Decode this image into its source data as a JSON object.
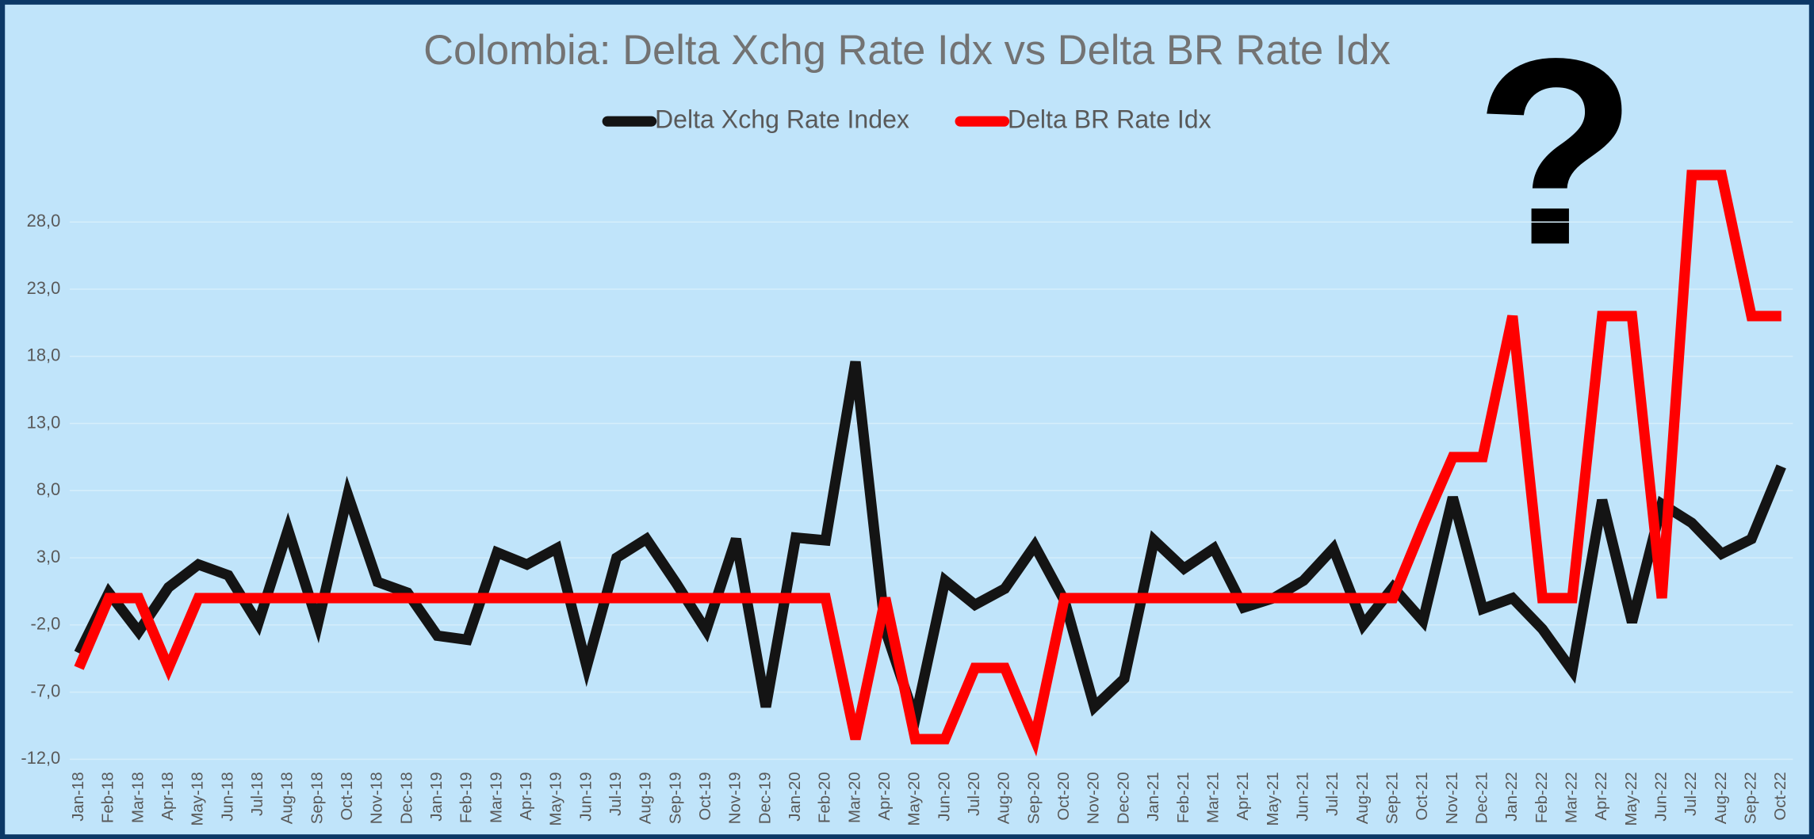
{
  "chart_data": {
    "type": "line",
    "title": "Colombia: Delta Xchg Rate Idx vs Delta BR Rate Idx",
    "annotation": "?",
    "categories": [
      "Jan-18",
      "Feb-18",
      "Mar-18",
      "Apr-18",
      "May-18",
      "Jun-18",
      "Jul-18",
      "Aug-18",
      "Sep-18",
      "Oct-18",
      "Nov-18",
      "Dec-18",
      "Jan-19",
      "Feb-19",
      "Mar-19",
      "Apr-19",
      "May-19",
      "Jun-19",
      "Jul-19",
      "Aug-19",
      "Sep-19",
      "Oct-19",
      "Nov-19",
      "Dec-19",
      "Jan-20",
      "Feb-20",
      "Mar-20",
      "Apr-20",
      "May-20",
      "Jun-20",
      "Jul-20",
      "Aug-20",
      "Sep-20",
      "Oct-20",
      "Nov-20",
      "Dec-20",
      "Jan-21",
      "Feb-21",
      "Mar-21",
      "Apr-21",
      "May-21",
      "Jun-21",
      "Jul-21",
      "Aug-21",
      "Sep-21",
      "Oct-21",
      "Nov-21",
      "Dec-21",
      "Jan-22",
      "Feb-22",
      "Mar-22",
      "Apr-22",
      "May-22",
      "Jun-22",
      "Jul-22",
      "Aug-22",
      "Sep-22",
      "Oct-22"
    ],
    "series": [
      {
        "name": "Delta Xchg Rate Index",
        "color": "#141414",
        "values": [
          -4.1,
          0.4,
          -2.5,
          0.8,
          2.5,
          1.7,
          -1.9,
          5.1,
          -1.9,
          7.7,
          1.2,
          0.4,
          -2.8,
          -3.1,
          3.4,
          2.5,
          3.7,
          -5.1,
          3.0,
          4.4,
          1.1,
          -2.4,
          4.4,
          -8.1,
          4.5,
          4.3,
          17.6,
          -2.4,
          -9.0,
          1.3,
          -0.5,
          0.7,
          3.9,
          -0.2,
          -8.1,
          -6.0,
          4.3,
          2.2,
          3.7,
          -0.7,
          0.0,
          1.3,
          3.7,
          -2.0,
          0.8,
          -1.7,
          7.5,
          -0.8,
          0.0,
          -2.3,
          -5.4,
          7.3,
          -1.8,
          7.0,
          5.6,
          3.3,
          4.4,
          9.8
        ]
      },
      {
        "name": "Delta BR Rate Idx",
        "color": "#ff0000",
        "values": [
          -5.2,
          0,
          0,
          -5.2,
          0,
          0,
          0,
          0,
          0,
          0,
          0,
          0,
          0,
          0,
          0,
          0,
          0,
          0,
          0,
          0,
          0,
          0,
          0,
          0,
          0,
          0,
          -10.5,
          0,
          -10.5,
          -10.5,
          -5.2,
          -5.2,
          -10.5,
          0,
          0,
          0,
          0,
          0,
          0,
          0,
          0,
          0,
          0,
          0,
          0,
          5.4,
          10.5,
          10.5,
          21.0,
          0,
          0,
          21.0,
          21.0,
          0,
          31.5,
          31.5,
          21.0,
          21.0
        ]
      }
    ],
    "ylim": [
      -12,
      33
    ],
    "yticks": [
      {
        "value": -12,
        "label": "-12,0"
      },
      {
        "value": -7,
        "label": "-7,0"
      },
      {
        "value": -2,
        "label": "-2,0"
      },
      {
        "value": 3,
        "label": "3,0"
      },
      {
        "value": 8,
        "label": "8,0"
      },
      {
        "value": 13,
        "label": "13,0"
      },
      {
        "value": 18,
        "label": "18,0"
      },
      {
        "value": 23,
        "label": "23,0"
      },
      {
        "value": 28,
        "label": "28,0"
      }
    ],
    "grid": true
  }
}
